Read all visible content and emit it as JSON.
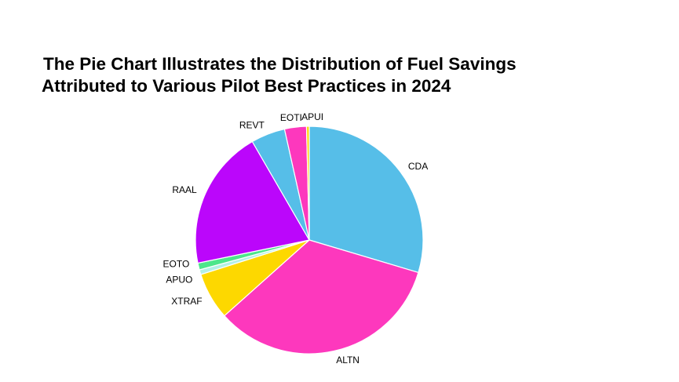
{
  "chart_data": {
    "type": "pie",
    "title_lines": [
      "The Pie Chart Illustrates the Distribution of Fuel Savings",
      "Attributed to Various Pilot Best Practices in 2024"
    ],
    "slices": [
      {
        "label": "CDA",
        "value": 30.5,
        "color": "#56bee8"
      },
      {
        "label": "ALTN",
        "value": 34.8,
        "color": "#fd38bd"
      },
      {
        "label": "XTRAF",
        "value": 6.9,
        "color": "#fdd800"
      },
      {
        "label": "APUO",
        "value": 0.7,
        "color": "#b3f0e6"
      },
      {
        "label": "EOTO",
        "value": 1.0,
        "color": "#4ce68b"
      },
      {
        "label": "RAAL",
        "value": 20.5,
        "color": "#bb06fb"
      },
      {
        "label": "REVT",
        "value": 5.0,
        "color": "#56bee8"
      },
      {
        "label": "EOTI",
        "value": 3.2,
        "color": "#fd38bd"
      },
      {
        "label": "APUI",
        "value": 0.4,
        "color": "#fdd800"
      }
    ],
    "legend": "none"
  }
}
